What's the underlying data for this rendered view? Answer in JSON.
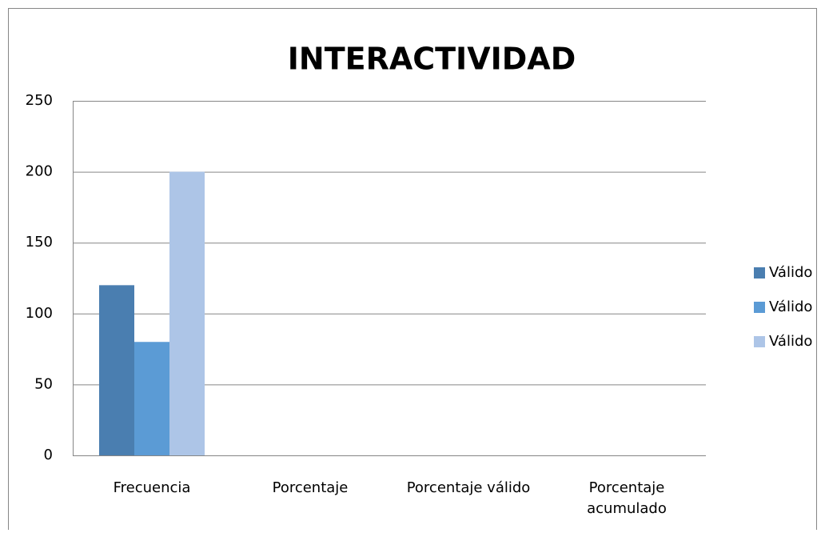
{
  "chart_data": {
    "type": "bar",
    "title": "INTERACTIVIDAD",
    "categories": [
      "Frecuencia",
      "Porcentaje",
      "Porcentaje válido",
      "Porcentaje acumulado"
    ],
    "series": [
      {
        "name": "Válido",
        "color": "#4a7eb0",
        "values": [
          120,
          null,
          null,
          null
        ]
      },
      {
        "name": "Válido",
        "color": "#5b9bd5",
        "values": [
          80,
          null,
          null,
          null
        ]
      },
      {
        "name": "Válido",
        "color": "#adc5e7",
        "values": [
          200,
          null,
          null,
          null
        ]
      }
    ],
    "ylim": [
      0,
      250
    ],
    "yticks": [
      0,
      50,
      100,
      150,
      200,
      250
    ],
    "grid": true,
    "legend": "right"
  }
}
